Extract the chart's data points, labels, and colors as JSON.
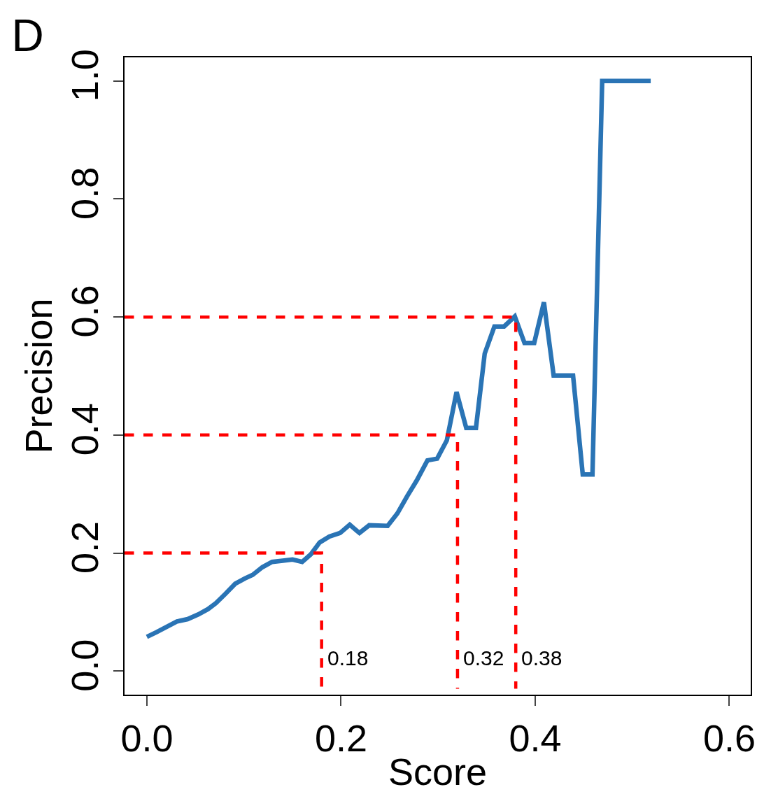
{
  "chart_data": {
    "type": "line",
    "title": "D",
    "xlabel": "Score",
    "ylabel": "Precision",
    "xlim": [
      -0.023,
      0.622
    ],
    "ylim": [
      -0.04,
      1.04
    ],
    "xticks": [
      {
        "value": 0,
        "label": "0.0"
      },
      0.2,
      0.4,
      0.6
    ],
    "yticks": [
      {
        "value": 0,
        "label": "0.0"
      },
      0.2,
      0.4,
      0.6,
      0.8,
      {
        "value": 1,
        "label": "1.0"
      }
    ],
    "grid": false,
    "marker": "none",
    "series": [
      {
        "color": "#2a74b5",
        "line_style": "solid",
        "x": [
          0,
          0.01,
          0.031,
          0.042,
          0.053,
          0.063,
          0.071,
          0.081,
          0.091,
          0.101,
          0.109,
          0.119,
          0.129,
          0.14,
          0.15,
          0.16,
          0.169,
          0.178,
          0.188,
          0.199,
          0.209,
          0.219,
          0.229,
          0.248,
          0.258,
          0.268,
          0.278,
          0.289,
          0.299,
          0.309,
          0.319,
          0.329,
          0.339,
          0.348,
          0.358,
          0.368,
          0.379,
          0.389,
          0.399,
          0.409,
          0.419,
          0.439,
          0.449,
          0.459,
          0.469,
          0.519
        ],
        "values": [
          0.058,
          0.066,
          0.084,
          0.088,
          0.096,
          0.105,
          0.115,
          0.131,
          0.148,
          0.157,
          0.163,
          0.176,
          0.185,
          0.187,
          0.189,
          0.185,
          0.198,
          0.218,
          0.228,
          0.234,
          0.248,
          0.234,
          0.247,
          0.246,
          0.267,
          0.296,
          0.323,
          0.357,
          0.36,
          0.391,
          0.473,
          0.412,
          0.412,
          0.538,
          0.584,
          0.584,
          0.601,
          0.556,
          0.556,
          0.625,
          0.501,
          0.501,
          0.333,
          0.333,
          1.0,
          1.0
        ]
      },
      {
        "color": "#ff0000",
        "line_style": "dashed",
        "x": [
          -0.023,
          0.18,
          0.18
        ],
        "values": [
          0.2,
          0.2,
          -0.03
        ]
      },
      {
        "color": "#ff0000",
        "line_style": "dashed",
        "x": [
          -0.023,
          0.32,
          0.32
        ],
        "values": [
          0.4,
          0.4,
          -0.03
        ]
      },
      {
        "color": "#ff0000",
        "line_style": "dashed",
        "x": [
          -0.023,
          0.38,
          0.38
        ],
        "values": [
          0.6,
          0.6,
          -0.03
        ]
      }
    ],
    "annotations": [
      {
        "text": "0.18",
        "x": 0.18,
        "y": 0
      },
      {
        "text": "0.32",
        "x": 0.32,
        "y": 0
      },
      {
        "text": "0.38",
        "x": 0.38,
        "y": 0
      }
    ]
  }
}
